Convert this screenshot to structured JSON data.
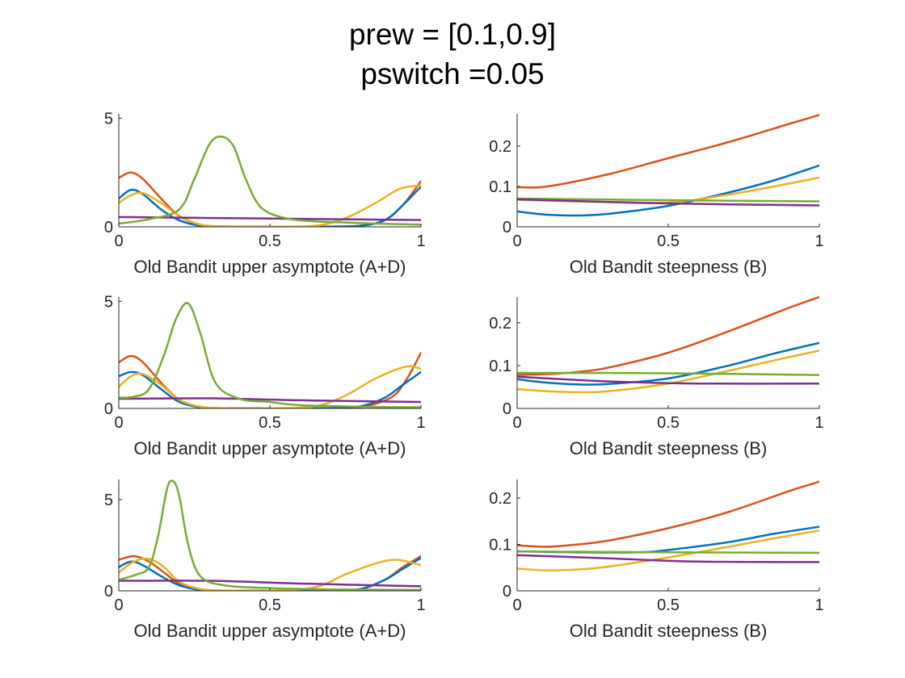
{
  "figure": {
    "title_line1": "prew = [0.1,0.9]",
    "title_line2": "pswitch =0.05"
  },
  "colors": {
    "blue": "#0072BD",
    "orange": "#D95319",
    "yellow": "#EDB120",
    "purple": "#7E2F8E",
    "green": "#77AC30",
    "axis": "#262626"
  },
  "chart_data": [
    {
      "type": "line",
      "xlabel": "Old Bandit upper asymptote (A+D)",
      "xlim": [
        0,
        1
      ],
      "ylim": [
        0,
        5.2
      ],
      "xticks": [
        "0",
        "0.5",
        "1"
      ],
      "yticks": [
        "0",
        "5"
      ],
      "series": [
        {
          "color": "orange",
          "x": [
            0,
            0.04,
            0.08,
            0.14,
            0.2,
            0.27,
            0.35,
            0.5,
            0.7,
            0.8,
            0.88,
            0.94,
            1.0
          ],
          "y": [
            2.25,
            2.5,
            2.2,
            1.3,
            0.5,
            0.1,
            0.02,
            0.01,
            0.01,
            0.05,
            0.3,
            1.0,
            2.1
          ]
        },
        {
          "color": "blue",
          "x": [
            0,
            0.04,
            0.08,
            0.14,
            0.2,
            0.27,
            0.35,
            0.5,
            0.7,
            0.8,
            0.88,
            0.94,
            1.0
          ],
          "y": [
            1.3,
            1.7,
            1.5,
            0.8,
            0.3,
            0.05,
            0.01,
            0.01,
            0.01,
            0.05,
            0.3,
            1.0,
            1.85
          ]
        },
        {
          "color": "yellow",
          "x": [
            0,
            0.04,
            0.08,
            0.14,
            0.2,
            0.27,
            0.35,
            0.5,
            0.65,
            0.75,
            0.85,
            0.93,
            1.0
          ],
          "y": [
            1.1,
            1.45,
            1.55,
            1.1,
            0.5,
            0.1,
            0.02,
            0.01,
            0.05,
            0.4,
            1.1,
            1.75,
            1.9
          ]
        },
        {
          "color": "purple",
          "x": [
            0,
            0.5,
            1.0
          ],
          "y": [
            0.45,
            0.38,
            0.31
          ]
        },
        {
          "color": "green",
          "x": [
            0,
            0.1,
            0.2,
            0.25,
            0.3,
            0.34,
            0.38,
            0.42,
            0.47,
            0.55,
            0.65,
            0.75,
            0.85,
            1.0
          ],
          "y": [
            0.15,
            0.35,
            0.8,
            2.2,
            3.8,
            4.15,
            3.7,
            2.2,
            0.9,
            0.4,
            0.25,
            0.2,
            0.15,
            0.1
          ]
        }
      ]
    },
    {
      "type": "line",
      "xlabel": "Old Bandit steepness (B)",
      "xlim": [
        0,
        1
      ],
      "ylim": [
        0,
        0.28
      ],
      "xticks": [
        "0",
        "0.5",
        "1"
      ],
      "yticks": [
        "0",
        "0.1",
        "0.2"
      ],
      "series": [
        {
          "color": "orange",
          "x": [
            0,
            0.1,
            0.3,
            0.5,
            0.7,
            0.9,
            1.0
          ],
          "y": [
            0.098,
            0.1,
            0.13,
            0.17,
            0.21,
            0.255,
            0.277
          ]
        },
        {
          "color": "blue",
          "x": [
            0,
            0.1,
            0.2,
            0.3,
            0.5,
            0.7,
            0.85,
            1.0
          ],
          "y": [
            0.038,
            0.03,
            0.028,
            0.032,
            0.052,
            0.085,
            0.115,
            0.152
          ]
        },
        {
          "color": "yellow",
          "x": [
            0,
            0.25,
            0.5,
            0.7,
            0.85,
            1.0
          ],
          "y": [
            0.067,
            0.062,
            0.06,
            0.08,
            0.1,
            0.122
          ]
        },
        {
          "color": "green",
          "x": [
            0,
            0.5,
            1.0
          ],
          "y": [
            0.07,
            0.066,
            0.063
          ]
        },
        {
          "color": "purple",
          "x": [
            0,
            0.5,
            1.0
          ],
          "y": [
            0.068,
            0.058,
            0.053
          ]
        }
      ]
    },
    {
      "type": "line",
      "xlabel": "Old Bandit upper asymptote (A+D)",
      "xlim": [
        0,
        1
      ],
      "ylim": [
        0,
        5.2
      ],
      "xticks": [
        "0",
        "0.5",
        "1"
      ],
      "yticks": [
        "0",
        "5"
      ],
      "series": [
        {
          "color": "orange",
          "x": [
            0,
            0.04,
            0.08,
            0.14,
            0.2,
            0.27,
            0.35,
            0.5,
            0.7,
            0.8,
            0.9,
            0.95,
            1.0
          ],
          "y": [
            2.15,
            2.45,
            2.15,
            1.2,
            0.4,
            0.05,
            0.01,
            0.01,
            0.01,
            0.05,
            0.5,
            1.3,
            2.6
          ]
        },
        {
          "color": "blue",
          "x": [
            0,
            0.04,
            0.08,
            0.14,
            0.2,
            0.27,
            0.35,
            0.5,
            0.7,
            0.8,
            0.88,
            0.94,
            1.0
          ],
          "y": [
            1.5,
            1.7,
            1.55,
            0.9,
            0.3,
            0.05,
            0.01,
            0.01,
            0.01,
            0.1,
            0.5,
            1.1,
            1.7
          ]
        },
        {
          "color": "yellow",
          "x": [
            0,
            0.04,
            0.08,
            0.14,
            0.2,
            0.27,
            0.35,
            0.5,
            0.65,
            0.75,
            0.85,
            0.95,
            1.0
          ],
          "y": [
            1.0,
            1.5,
            1.6,
            1.1,
            0.4,
            0.08,
            0.01,
            0.01,
            0.1,
            0.6,
            1.4,
            1.95,
            1.85
          ]
        },
        {
          "color": "purple",
          "x": [
            0,
            0.3,
            0.6,
            1.0
          ],
          "y": [
            0.45,
            0.47,
            0.38,
            0.3
          ]
        },
        {
          "color": "green",
          "x": [
            0,
            0.05,
            0.1,
            0.15,
            0.19,
            0.23,
            0.27,
            0.32,
            0.4,
            0.5,
            0.6,
            0.8,
            1.0
          ],
          "y": [
            0.5,
            0.55,
            0.9,
            2.5,
            4.2,
            4.9,
            3.5,
            1.2,
            0.45,
            0.3,
            0.15,
            0.08,
            0.05
          ]
        }
      ]
    },
    {
      "type": "line",
      "xlabel": "Old Bandit steepness (B)",
      "xlim": [
        0,
        1
      ],
      "ylim": [
        0,
        0.26
      ],
      "xticks": [
        "0",
        "0.5",
        "1"
      ],
      "yticks": [
        "0",
        "0.1",
        "0.2"
      ],
      "series": [
        {
          "color": "orange",
          "x": [
            0,
            0.1,
            0.2,
            0.3,
            0.5,
            0.7,
            0.9,
            1.0
          ],
          "y": [
            0.078,
            0.08,
            0.085,
            0.095,
            0.13,
            0.18,
            0.235,
            0.26
          ]
        },
        {
          "color": "blue",
          "x": [
            0,
            0.1,
            0.2,
            0.3,
            0.5,
            0.7,
            0.85,
            1.0
          ],
          "y": [
            0.068,
            0.06,
            0.056,
            0.057,
            0.07,
            0.1,
            0.128,
            0.153
          ]
        },
        {
          "color": "yellow",
          "x": [
            0,
            0.1,
            0.2,
            0.3,
            0.5,
            0.7,
            0.85,
            1.0
          ],
          "y": [
            0.045,
            0.04,
            0.038,
            0.04,
            0.058,
            0.088,
            0.112,
            0.135
          ]
        },
        {
          "color": "green",
          "x": [
            0,
            0.5,
            1.0
          ],
          "y": [
            0.083,
            0.082,
            0.078
          ]
        },
        {
          "color": "purple",
          "x": [
            0,
            0.3,
            0.6,
            1.0
          ],
          "y": [
            0.074,
            0.063,
            0.058,
            0.058
          ]
        }
      ]
    },
    {
      "type": "line",
      "xlabel": "Old Bandit upper asymptote (A+D)",
      "xlim": [
        0,
        1
      ],
      "ylim": [
        0,
        6.1
      ],
      "xticks": [
        "0",
        "0.5",
        "1"
      ],
      "yticks": [
        "0",
        "5"
      ],
      "series": [
        {
          "color": "orange",
          "x": [
            0,
            0.05,
            0.1,
            0.15,
            0.2,
            0.27,
            0.35,
            0.5,
            0.7,
            0.8,
            0.88,
            0.94,
            1.0
          ],
          "y": [
            1.7,
            1.9,
            1.6,
            1.0,
            0.4,
            0.05,
            0.01,
            0.01,
            0.01,
            0.1,
            0.6,
            1.3,
            1.9
          ]
        },
        {
          "color": "blue",
          "x": [
            0,
            0.04,
            0.08,
            0.14,
            0.2,
            0.27,
            0.35,
            0.5,
            0.7,
            0.8,
            0.88,
            0.94,
            1.0
          ],
          "y": [
            1.3,
            1.6,
            1.4,
            0.8,
            0.3,
            0.05,
            0.01,
            0.01,
            0.01,
            0.1,
            0.6,
            1.2,
            1.8
          ]
        },
        {
          "color": "yellow",
          "x": [
            0,
            0.05,
            0.1,
            0.15,
            0.2,
            0.27,
            0.35,
            0.5,
            0.65,
            0.75,
            0.85,
            0.92,
            1.0
          ],
          "y": [
            1.0,
            1.6,
            1.75,
            1.3,
            0.5,
            0.1,
            0.02,
            0.01,
            0.2,
            0.9,
            1.5,
            1.7,
            1.4
          ]
        },
        {
          "color": "purple",
          "x": [
            0,
            0.3,
            0.6,
            1.0
          ],
          "y": [
            0.55,
            0.55,
            0.4,
            0.25
          ]
        },
        {
          "color": "green",
          "x": [
            0,
            0.06,
            0.1,
            0.13,
            0.16,
            0.18,
            0.2,
            0.23,
            0.27,
            0.35,
            0.5,
            0.7,
            1.0
          ],
          "y": [
            0.6,
            0.9,
            1.3,
            3.0,
            5.6,
            6.0,
            5.2,
            2.5,
            0.8,
            0.3,
            0.15,
            0.08,
            0.05
          ]
        }
      ]
    },
    {
      "type": "line",
      "xlabel": "Old Bandit steepness (B)",
      "xlim": [
        0,
        1
      ],
      "ylim": [
        0,
        0.24
      ],
      "xticks": [
        "0",
        "0.5",
        "1"
      ],
      "yticks": [
        "0",
        "0.1",
        "0.2"
      ],
      "series": [
        {
          "color": "orange",
          "x": [
            0,
            0.1,
            0.2,
            0.3,
            0.5,
            0.7,
            0.9,
            1.0
          ],
          "y": [
            0.098,
            0.095,
            0.1,
            0.108,
            0.135,
            0.17,
            0.215,
            0.235
          ]
        },
        {
          "color": "blue",
          "x": [
            0,
            0.2,
            0.4,
            0.5,
            0.7,
            0.85,
            1.0
          ],
          "y": [
            0.085,
            0.083,
            0.083,
            0.088,
            0.105,
            0.123,
            0.138
          ]
        },
        {
          "color": "yellow",
          "x": [
            0,
            0.1,
            0.2,
            0.3,
            0.5,
            0.7,
            0.85,
            1.0
          ],
          "y": [
            0.048,
            0.044,
            0.046,
            0.052,
            0.072,
            0.095,
            0.113,
            0.13
          ]
        },
        {
          "color": "green",
          "x": [
            0,
            0.5,
            1.0
          ],
          "y": [
            0.085,
            0.083,
            0.082
          ]
        },
        {
          "color": "purple",
          "x": [
            0,
            0.3,
            0.6,
            1.0
          ],
          "y": [
            0.077,
            0.07,
            0.063,
            0.062
          ]
        }
      ]
    }
  ]
}
